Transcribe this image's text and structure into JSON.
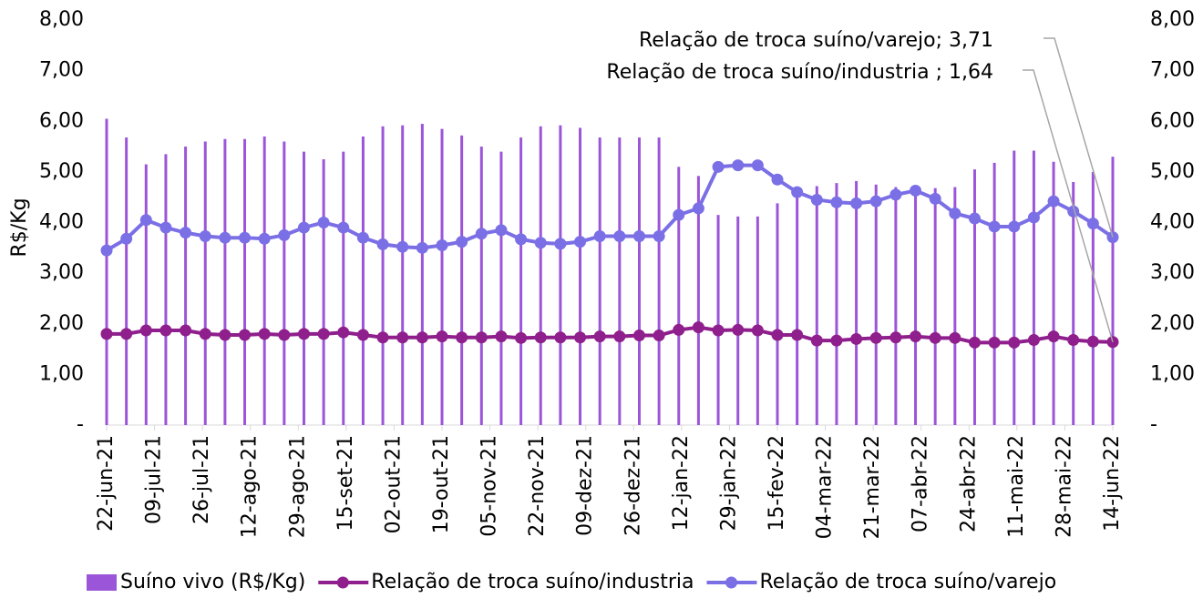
{
  "chart_data": {
    "type": "combo",
    "y_label": "R$/Kg",
    "x": [
      "2021-06-22",
      "2021-06-29",
      "2021-07-06",
      "2021-07-13",
      "2021-07-20",
      "2021-07-27",
      "2021-08-03",
      "2021-08-10",
      "2021-08-17",
      "2021-08-24",
      "2021-08-31",
      "2021-09-07",
      "2021-09-14",
      "2021-09-21",
      "2021-09-28",
      "2021-10-05",
      "2021-10-12",
      "2021-10-19",
      "2021-10-26",
      "2021-11-02",
      "2021-11-09",
      "2021-11-16",
      "2021-11-23",
      "2021-11-30",
      "2021-12-07",
      "2021-12-14",
      "2021-12-21",
      "2021-12-28",
      "2022-01-04",
      "2022-01-11",
      "2022-01-18",
      "2022-01-25",
      "2022-02-01",
      "2022-02-08",
      "2022-02-15",
      "2022-02-22",
      "2022-03-01",
      "2022-03-08",
      "2022-03-15",
      "2022-03-22",
      "2022-03-29",
      "2022-04-05",
      "2022-04-12",
      "2022-04-19",
      "2022-04-26",
      "2022-05-03",
      "2022-05-10",
      "2022-05-17",
      "2022-05-24",
      "2022-05-31",
      "2022-06-07",
      "2022-06-14"
    ],
    "xlim": [
      "2021-06-22",
      "2022-06-14"
    ],
    "xticks": [
      {
        "value": "2021-06-22",
        "label": "22-jun-21"
      },
      {
        "value": "2021-07-09",
        "label": "09-jul-21"
      },
      {
        "value": "2021-07-26",
        "label": "26-jul-21"
      },
      {
        "value": "2021-08-12",
        "label": "12-ago-21"
      },
      {
        "value": "2021-08-29",
        "label": "29-ago-21"
      },
      {
        "value": "2021-09-15",
        "label": "15-set-21"
      },
      {
        "value": "2021-10-02",
        "label": "02-out-21"
      },
      {
        "value": "2021-10-19",
        "label": "19-out-21"
      },
      {
        "value": "2021-11-05",
        "label": "05-nov-21"
      },
      {
        "value": "2021-11-22",
        "label": "22-nov-21"
      },
      {
        "value": "2021-12-09",
        "label": "09-dez-21"
      },
      {
        "value": "2021-12-26",
        "label": "26-dez-21"
      },
      {
        "value": "2022-01-12",
        "label": "12-jan-22"
      },
      {
        "value": "2022-01-29",
        "label": "29-jan-22"
      },
      {
        "value": "2022-02-15",
        "label": "15-fev-22"
      },
      {
        "value": "2022-03-04",
        "label": "04-mar-22"
      },
      {
        "value": "2022-03-21",
        "label": "21-mar-22"
      },
      {
        "value": "2022-04-07",
        "label": "07-abr-22"
      },
      {
        "value": "2022-04-24",
        "label": "24-abr-22"
      },
      {
        "value": "2022-05-11",
        "label": "11-mai-22"
      },
      {
        "value": "2022-05-28",
        "label": "28-mai-22"
      },
      {
        "value": "2022-06-14",
        "label": "14-jun-22"
      }
    ],
    "ylim": [
      0,
      8
    ],
    "yticks": [
      {
        "value": 0,
        "label": "-"
      },
      {
        "value": 1,
        "label": "1,00"
      },
      {
        "value": 2,
        "label": "2,00"
      },
      {
        "value": 3,
        "label": "3,00"
      },
      {
        "value": 4,
        "label": "4,00"
      },
      {
        "value": 5,
        "label": "5,00"
      },
      {
        "value": 6,
        "label": "6,00"
      },
      {
        "value": 7,
        "label": "7,00"
      },
      {
        "value": 8,
        "label": "8,00"
      }
    ],
    "y2lim": [
      0,
      8
    ],
    "y2ticks": [
      {
        "value": 0,
        "label": "-"
      },
      {
        "value": 1,
        "label": "1,00"
      },
      {
        "value": 2,
        "label": "2,00"
      },
      {
        "value": 3,
        "label": "3,00"
      },
      {
        "value": 4,
        "label": "4,00"
      },
      {
        "value": 5,
        "label": "5,00"
      },
      {
        "value": 6,
        "label": "6,00"
      },
      {
        "value": 7,
        "label": "7,00"
      },
      {
        "value": 8,
        "label": "8,00"
      }
    ],
    "series": [
      {
        "name": "Suíno vivo (R$/Kg)",
        "type": "bar",
        "color": "#9b55d9",
        "values": [
          6.05,
          5.68,
          5.15,
          5.35,
          5.5,
          5.6,
          5.65,
          5.65,
          5.7,
          5.6,
          5.4,
          5.25,
          5.4,
          5.7,
          5.9,
          5.92,
          5.95,
          5.85,
          5.72,
          5.5,
          5.4,
          5.68,
          5.9,
          5.92,
          5.87,
          5.68,
          5.68,
          5.68,
          5.68,
          5.1,
          4.92,
          4.15,
          4.12,
          4.12,
          4.38,
          4.6,
          4.72,
          4.78,
          4.82,
          4.75,
          4.7,
          4.68,
          4.68,
          4.7,
          5.05,
          5.18,
          5.42,
          5.42,
          5.2,
          4.8,
          5.0,
          5.3
        ]
      },
      {
        "name": "Relação de troca suíno/industria",
        "type": "line",
        "axis": "y2",
        "color": "#8e1f8c",
        "values": [
          1.8,
          1.8,
          1.87,
          1.87,
          1.87,
          1.8,
          1.78,
          1.78,
          1.8,
          1.78,
          1.8,
          1.8,
          1.83,
          1.78,
          1.73,
          1.73,
          1.73,
          1.75,
          1.73,
          1.73,
          1.75,
          1.72,
          1.73,
          1.73,
          1.73,
          1.75,
          1.75,
          1.77,
          1.77,
          1.88,
          1.93,
          1.87,
          1.88,
          1.87,
          1.78,
          1.78,
          1.67,
          1.67,
          1.7,
          1.72,
          1.73,
          1.75,
          1.72,
          1.72,
          1.63,
          1.63,
          1.63,
          1.68,
          1.75,
          1.68,
          1.65,
          1.64
        ]
      },
      {
        "name": "Relação de troca suíno/varejo",
        "type": "line",
        "axis": "y2",
        "color": "#7b6fe6",
        "values": [
          3.45,
          3.68,
          4.05,
          3.9,
          3.8,
          3.73,
          3.7,
          3.7,
          3.68,
          3.75,
          3.9,
          4.0,
          3.9,
          3.7,
          3.57,
          3.52,
          3.5,
          3.55,
          3.62,
          3.78,
          3.85,
          3.67,
          3.6,
          3.58,
          3.62,
          3.73,
          3.73,
          3.73,
          3.73,
          4.15,
          4.28,
          5.1,
          5.13,
          5.13,
          4.85,
          4.6,
          4.45,
          4.4,
          4.38,
          4.42,
          4.55,
          4.63,
          4.47,
          4.18,
          4.08,
          3.92,
          3.92,
          4.1,
          4.42,
          4.22,
          3.98,
          3.71
        ]
      }
    ],
    "annotations": [
      "Relação de troca suíno/varejo; 3,71",
      "Relação de troca suíno/industria ; 1,64"
    ]
  }
}
